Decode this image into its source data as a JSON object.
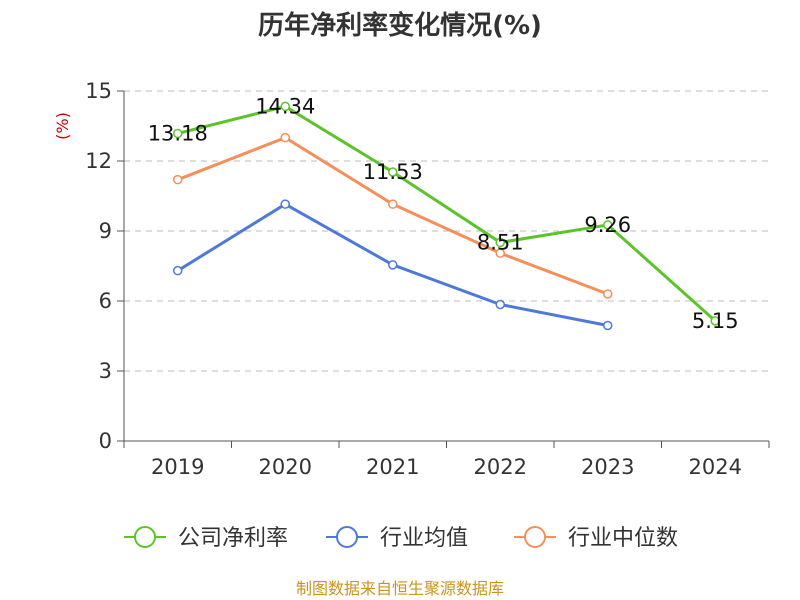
{
  "chart_data": {
    "type": "line",
    "title": "历年净利率变化情况(%)",
    "ylabel": "(%)",
    "xlabel": "",
    "categories": [
      "2019",
      "2020",
      "2021",
      "2022",
      "2023",
      "2024"
    ],
    "ylim": [
      0,
      15
    ],
    "yticks": [
      0,
      3,
      6,
      9,
      12,
      15
    ],
    "grid": true,
    "legend_position": "bottom",
    "source": "制图数据来自恒生聚源数据库",
    "series": [
      {
        "name": "公司净利率",
        "values": [
          13.18,
          14.34,
          11.53,
          8.51,
          9.26,
          5.15
        ],
        "labels": [
          "13.18",
          "14.34",
          "11.53",
          "8.51",
          "9.26",
          "5.15"
        ],
        "color": "#5cc42b"
      },
      {
        "name": "行业均值",
        "values": [
          7.3,
          10.15,
          7.55,
          5.85,
          4.95,
          null
        ],
        "color": "#4e79d9"
      },
      {
        "name": "行业中位数",
        "values": [
          11.2,
          13.0,
          10.15,
          8.05,
          6.3,
          null
        ],
        "color": "#f58f5b"
      }
    ]
  }
}
